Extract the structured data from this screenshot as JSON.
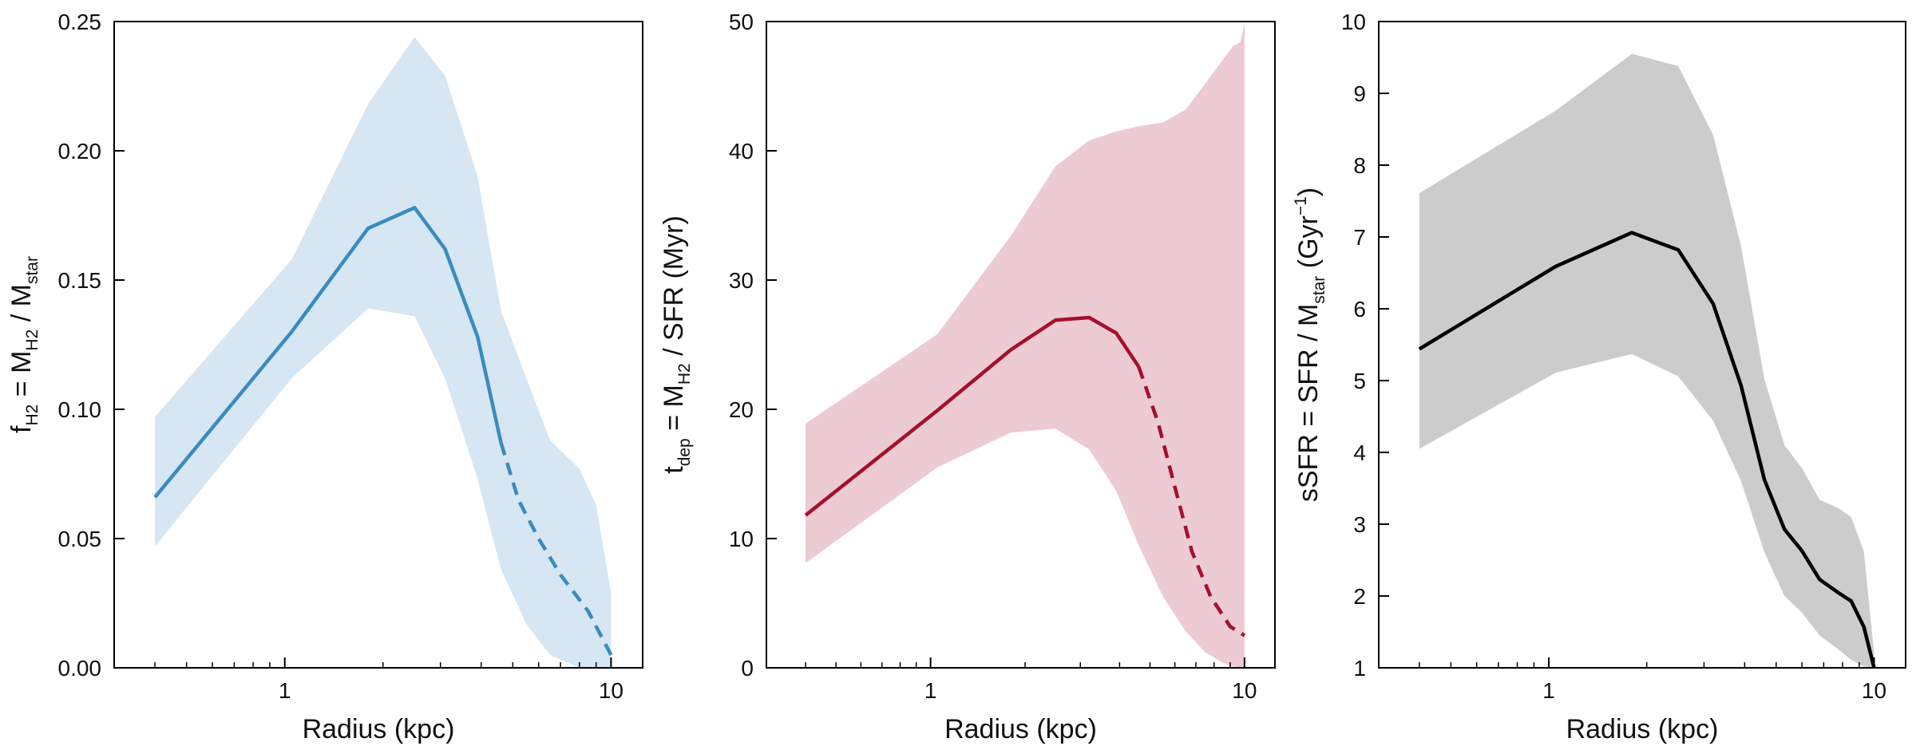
{
  "chart_data": [
    {
      "type": "line",
      "name": "panel-fh2",
      "title": "",
      "xscale": "log",
      "xlim": [
        0.3,
        12.5
      ],
      "ylim": [
        0,
        0.25
      ],
      "xticks": [
        1,
        10
      ],
      "xtick_labels": [
        "1",
        "10"
      ],
      "yticks": [
        0,
        0.05,
        0.1,
        0.15,
        0.2,
        0.25
      ],
      "ytick_labels": [
        "0.00",
        "0.05",
        "0.10",
        "0.15",
        "0.20",
        "0.25"
      ],
      "xlabel": "Radius (kpc)",
      "ylabel": {
        "pre": "f",
        "pre_sub": "H2",
        "mid": " = M",
        "mid_sub": "H2",
        "post": " / M",
        "post_sub": "star"
      },
      "line_color": "#3a8bbf",
      "band_color": "#d6e6f3",
      "median_solid": {
        "x": [
          0.4,
          1.05,
          1.8,
          2.5,
          3.1,
          3.9,
          4.6
        ],
        "y": [
          0.066,
          0.13,
          0.17,
          0.178,
          0.162,
          0.128,
          0.087
        ]
      },
      "median_dashed": {
        "x": [
          4.6,
          5.2,
          6.0,
          7.0,
          8.5,
          10.0
        ],
        "y": [
          0.087,
          0.065,
          0.05,
          0.036,
          0.022,
          0.005
        ]
      },
      "band": {
        "x": [
          0.4,
          1.05,
          1.8,
          2.5,
          3.1,
          3.9,
          4.6,
          5.5,
          6.5,
          8.0,
          9.0,
          9.6,
          10.0
        ],
        "upper": [
          0.097,
          0.158,
          0.218,
          0.244,
          0.229,
          0.19,
          0.138,
          0.112,
          0.088,
          0.077,
          0.063,
          0.042,
          0.029
        ],
        "lower": [
          0.047,
          0.112,
          0.139,
          0.136,
          0.112,
          0.073,
          0.038,
          0.017,
          0.005,
          0.0,
          0.0,
          0.0,
          0.0
        ]
      }
    },
    {
      "type": "line",
      "name": "panel-tdep",
      "title": "",
      "xscale": "log",
      "xlim": [
        0.3,
        12.5
      ],
      "ylim": [
        0,
        50
      ],
      "xticks": [
        1,
        10
      ],
      "xtick_labels": [
        "1",
        "10"
      ],
      "yticks": [
        0,
        10,
        20,
        30,
        40,
        50
      ],
      "ytick_labels": [
        "0",
        "10",
        "20",
        "30",
        "40",
        "50"
      ],
      "xlabel": "Radius (kpc)",
      "ylabel": {
        "pre": "t",
        "pre_sub": "dep",
        "mid": " = M",
        "mid_sub": "H2",
        "post": " / SFR (Myr)",
        "post_sub": ""
      },
      "line_color": "#a50f2d",
      "band_color": "#edcbd2",
      "median_solid": {
        "x": [
          0.4,
          1.05,
          1.8,
          2.5,
          3.2,
          3.9,
          4.6
        ],
        "y": [
          11.8,
          19.9,
          24.6,
          26.9,
          27.1,
          25.9,
          23.3
        ]
      },
      "median_dashed": {
        "x": [
          4.6,
          5.3,
          6.0,
          6.8,
          7.8,
          9.0,
          10.0
        ],
        "y": [
          23.3,
          19.0,
          14.0,
          9.0,
          5.5,
          3.2,
          2.5
        ]
      },
      "band": {
        "x": [
          0.4,
          1.05,
          1.8,
          2.5,
          3.2,
          3.9,
          4.6,
          5.5,
          6.5,
          7.5,
          8.5,
          9.2,
          9.7,
          10.0
        ],
        "upper": [
          18.9,
          25.8,
          33.4,
          38.8,
          40.8,
          41.5,
          41.9,
          42.2,
          43.2,
          45.2,
          47.0,
          48.1,
          48.4,
          49.9
        ],
        "lower": [
          8.1,
          15.5,
          18.2,
          18.5,
          16.9,
          13.7,
          9.5,
          5.5,
          2.8,
          1.2,
          0.4,
          0.1,
          0.0,
          0.0
        ]
      }
    },
    {
      "type": "line",
      "name": "panel-ssfr",
      "title": "",
      "xscale": "log",
      "xlim": [
        0.3,
        12.5
      ],
      "ylim": [
        1,
        10
      ],
      "xticks": [
        1,
        10
      ],
      "xtick_labels": [
        "1",
        "10"
      ],
      "yticks": [
        1,
        2,
        3,
        4,
        5,
        6,
        7,
        8,
        9,
        10
      ],
      "ytick_labels": [
        "1",
        "2",
        "3",
        "4",
        "5",
        "6",
        "7",
        "8",
        "9",
        "10"
      ],
      "xlabel": "Radius (kpc)",
      "ylabel": {
        "pre": "sSFR = SFR / M",
        "pre_sub": "star",
        "mid": " (Gyr",
        "mid_sup": "−1",
        "post": ")",
        "post_sub": ""
      },
      "line_color": "#000000",
      "band_color": "#cccccc",
      "median_solid": {
        "x": [
          0.4,
          1.05,
          1.8,
          2.5,
          3.2,
          3.9,
          4.6,
          5.3,
          6.0,
          6.8,
          7.8,
          8.5,
          9.3,
          10.0
        ],
        "y": [
          5.44,
          6.59,
          7.06,
          6.82,
          6.07,
          4.93,
          3.62,
          2.93,
          2.63,
          2.23,
          2.04,
          1.93,
          1.57,
          1.0
        ]
      },
      "median_dashed": {
        "x": [],
        "y": []
      },
      "band": {
        "x": [
          0.4,
          1.05,
          1.8,
          2.5,
          3.2,
          3.9,
          4.6,
          5.3,
          6.0,
          6.8,
          7.8,
          8.5,
          9.3,
          10.0
        ],
        "upper": [
          7.61,
          8.76,
          9.55,
          9.38,
          8.42,
          6.87,
          5.02,
          4.1,
          3.78,
          3.34,
          3.22,
          3.1,
          2.62,
          1.2
        ],
        "lower": [
          4.05,
          5.11,
          5.37,
          5.06,
          4.44,
          3.6,
          2.61,
          2.0,
          1.77,
          1.45,
          1.25,
          1.11,
          1.02,
          1.0
        ]
      }
    }
  ]
}
